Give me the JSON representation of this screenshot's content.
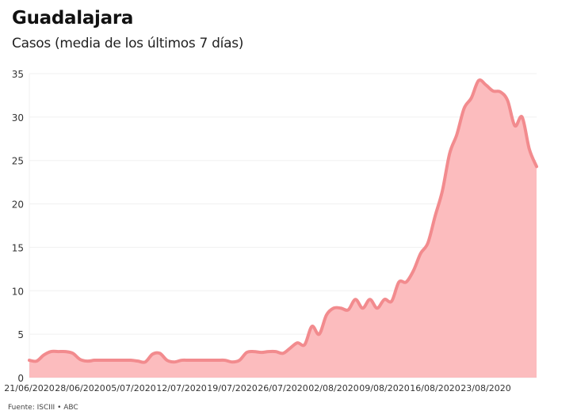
{
  "header": {
    "title": "Guadalajara",
    "subtitle": "Casos (media de los últimos 7 días)"
  },
  "footer": {
    "source": "Fuente: ISCIII • ABC"
  },
  "colors": {
    "line": "#f28b8e",
    "fill": "#fcbcbe",
    "grid": "#f0f0f0"
  },
  "chart_data": {
    "type": "area",
    "title": "Guadalajara",
    "subtitle": "Casos (media de los últimos 7 días)",
    "xlabel": "",
    "ylabel": "",
    "ylim": [
      0,
      35
    ],
    "yticks": [
      0,
      5,
      10,
      15,
      20,
      25,
      30,
      35
    ],
    "xticks": [
      "21/06/2020",
      "28/06/2020",
      "05/07/2020",
      "12/07/2020",
      "19/07/2020",
      "26/07/2020",
      "02/08/2020",
      "09/08/2020",
      "16/08/2020",
      "23/08/2020"
    ],
    "grid": true,
    "legend": "none",
    "x_start": "21/06/2020",
    "x_end": "23/08/2020",
    "series": [
      {
        "name": "Casos (media 7 días)",
        "values": [
          2.0,
          1.9,
          2.6,
          3.0,
          3.0,
          3.0,
          2.8,
          2.1,
          1.9,
          2.0,
          2.0,
          2.0,
          2.0,
          2.0,
          2.0,
          1.9,
          1.8,
          2.7,
          2.8,
          2.0,
          1.8,
          2.0,
          2.0,
          2.0,
          2.0,
          2.0,
          2.0,
          2.0,
          1.8,
          2.0,
          2.9,
          3.0,
          2.9,
          3.0,
          3.0,
          2.8,
          3.4,
          4.0,
          3.8,
          5.9,
          5.0,
          7.2,
          8.0,
          8.0,
          7.8,
          9.0,
          8.0,
          9.0,
          8.0,
          9.0,
          8.8,
          11.0,
          11.0,
          12.3,
          14.3,
          15.5,
          18.6,
          21.5,
          25.8,
          28.0,
          31.0,
          32.2,
          34.2,
          33.7,
          33.0,
          32.9,
          31.9,
          29.0,
          30.0,
          26.3,
          24.3
        ]
      }
    ]
  }
}
